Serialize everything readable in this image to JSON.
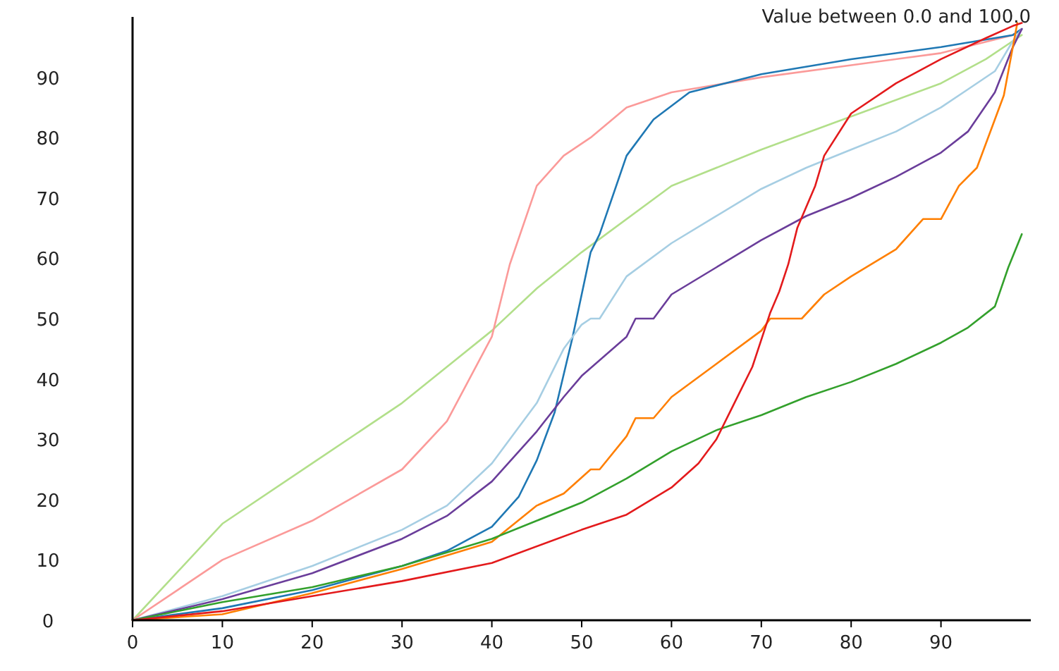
{
  "chart_data": {
    "type": "line",
    "annotations": [
      "Value between 0.0 and 100.0"
    ],
    "xlim": [
      0,
      100
    ],
    "ylim": [
      0,
      100
    ],
    "xticks": [
      0,
      10,
      20,
      30,
      40,
      50,
      60,
      70,
      80,
      90
    ],
    "yticks": [
      0,
      10,
      20,
      30,
      40,
      50,
      60,
      70,
      80,
      90
    ],
    "line_style": "solid",
    "series": [
      {
        "color": "#b2df8a",
        "x": [
          0,
          10,
          20,
          30,
          40,
          45,
          50,
          60,
          70,
          80,
          90,
          95,
          98,
          99
        ],
        "values": [
          0,
          16,
          26,
          36,
          48,
          55,
          61,
          72,
          78,
          83.5,
          89,
          93,
          96,
          97
        ]
      },
      {
        "color": "#fb9a99",
        "x": [
          0,
          10,
          20,
          30,
          35,
          40,
          42,
          45,
          48,
          51,
          55,
          60,
          70,
          80,
          90,
          98,
          99
        ],
        "values": [
          0,
          10,
          16.5,
          25,
          33,
          47,
          59,
          72,
          77,
          80,
          85,
          87.5,
          90,
          92,
          94,
          97,
          98
        ]
      },
      {
        "color": "#1f78b4",
        "x": [
          0,
          10,
          20,
          30,
          35,
          40,
          43,
          45,
          47,
          49,
          51,
          52,
          55,
          58,
          62,
          70,
          80,
          90,
          98,
          99
        ],
        "values": [
          0,
          2,
          5,
          9,
          11.5,
          15.5,
          20.5,
          26.5,
          34.5,
          47,
          61,
          64,
          77,
          83,
          87.5,
          90.5,
          93,
          95,
          97,
          98
        ]
      },
      {
        "color": "#a6cee3",
        "x": [
          0,
          10,
          20,
          30,
          35,
          40,
          45,
          48,
          50,
          51,
          52,
          55,
          60,
          65,
          70,
          75,
          80,
          85,
          90,
          93,
          96,
          98,
          99
        ],
        "values": [
          0,
          4,
          9,
          15,
          19,
          26,
          36,
          45,
          49,
          50,
          50,
          57,
          62.5,
          67,
          71.5,
          75,
          78,
          81,
          85,
          88,
          91,
          96,
          98
        ]
      },
      {
        "color": "#6a3d9a",
        "x": [
          0,
          10,
          20,
          30,
          35,
          40,
          45,
          48,
          50,
          55,
          56,
          58,
          60,
          65,
          70,
          75,
          80,
          85,
          90,
          93,
          96,
          98,
          99
        ],
        "values": [
          0,
          3.5,
          7.8,
          13.5,
          17.3,
          23,
          31.3,
          37,
          40.5,
          47,
          50,
          50,
          54,
          58.5,
          63,
          67,
          70,
          73.5,
          77.5,
          81,
          87.5,
          95,
          98
        ]
      },
      {
        "color": "#ff7f00",
        "x": [
          0,
          10,
          20,
          30,
          40,
          45,
          48,
          51,
          52,
          55,
          56,
          58,
          60,
          65,
          70,
          71,
          74.5,
          77,
          80,
          85,
          88,
          90,
          92,
          94,
          96,
          97,
          98,
          98.5
        ],
        "values": [
          0,
          1,
          4.5,
          8.5,
          13,
          19,
          21,
          25,
          25,
          30.5,
          33.5,
          33.5,
          37,
          42.5,
          48,
          50,
          50,
          54,
          57,
          61.5,
          66.5,
          66.5,
          72,
          75,
          83,
          87,
          95,
          99
        ]
      },
      {
        "color": "#33a02c",
        "x": [
          0,
          10,
          20,
          30,
          40,
          45,
          50,
          55,
          60,
          65,
          70,
          75,
          80,
          85,
          90,
          93,
          96,
          97.5,
          99
        ],
        "values": [
          0,
          3,
          5.5,
          9,
          13.5,
          16.5,
          19.5,
          23.5,
          28,
          31.5,
          34,
          37,
          39.5,
          42.5,
          46,
          48.5,
          52,
          58.5,
          64
        ]
      },
      {
        "color": "#e31a1c",
        "x": [
          0,
          10,
          20,
          30,
          40,
          50,
          55,
          60,
          63,
          65,
          67,
          69,
          71,
          72,
          73,
          74,
          76,
          77,
          80,
          85,
          90,
          95,
          98,
          99
        ],
        "values": [
          0,
          1.5,
          4,
          6.5,
          9.5,
          15,
          17.5,
          22,
          26,
          30,
          36,
          42,
          51,
          54.5,
          59,
          65,
          72,
          77,
          84,
          89,
          93,
          96.5,
          98.5,
          99
        ]
      }
    ]
  }
}
